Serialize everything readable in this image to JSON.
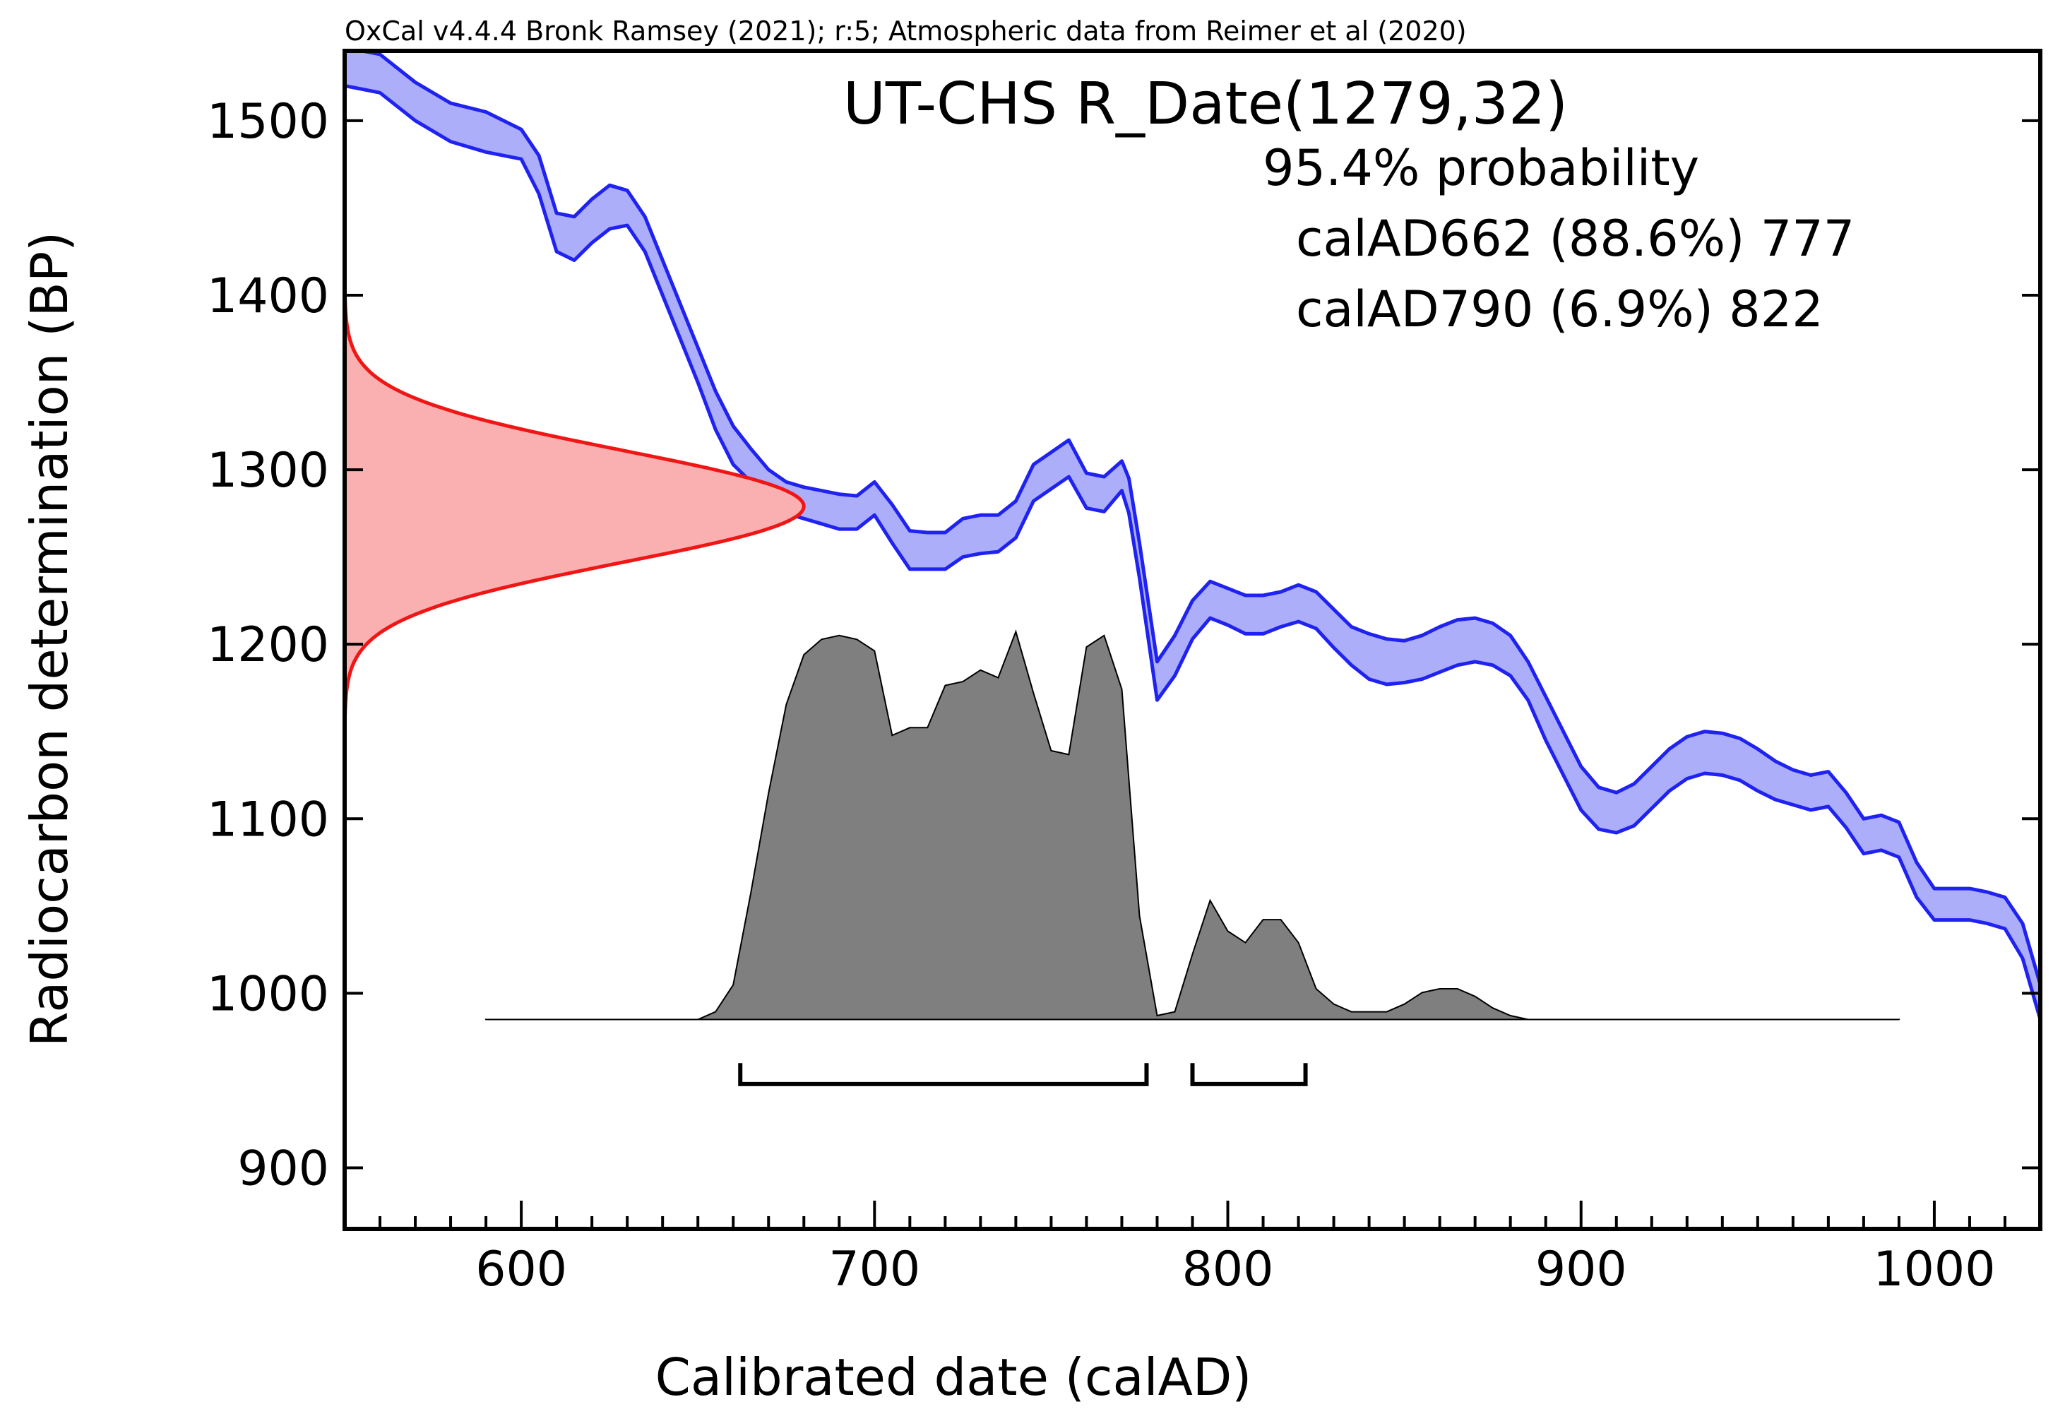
{
  "credit": "OxCal v4.4.4 Bronk Ramsey (2021); r:5; Atmospheric data from Reimer et al (2020)",
  "legend": {
    "sample": "UT-CHS R_Date(1279,32)",
    "probability_heading": "95.4% probability",
    "ranges": [
      "calAD662 (88.6%) 777",
      "calAD790 (6.9%) 822"
    ]
  },
  "colors": {
    "curve": "#1f22f0",
    "curve_fill": "#acaefa",
    "measurement": "#f01616",
    "measurement_fill": "#fab0b0",
    "posterior_fill": "#7f7f7f"
  },
  "chart_data": {
    "type": "area",
    "xlabel": "Calibrated date (calAD)",
    "ylabel": "Radiocarbon determination (BP)",
    "xlim": [
      550,
      1030
    ],
    "ylim": [
      865,
      1540
    ],
    "xticks": [
      600,
      700,
      800,
      900,
      1000
    ],
    "yticks": [
      900,
      1000,
      1100,
      1200,
      1300,
      1400,
      1500
    ],
    "grid": false,
    "calibration_curve": {
      "x": [
        550,
        560,
        570,
        580,
        590,
        600,
        605,
        610,
        615,
        620,
        625,
        630,
        635,
        640,
        645,
        650,
        655,
        660,
        665,
        670,
        675,
        680,
        685,
        690,
        695,
        700,
        705,
        710,
        715,
        720,
        725,
        730,
        735,
        740,
        745,
        750,
        755,
        760,
        765,
        770,
        772,
        775,
        780,
        785,
        790,
        795,
        800,
        805,
        810,
        815,
        820,
        825,
        830,
        835,
        840,
        845,
        850,
        855,
        860,
        865,
        870,
        875,
        880,
        885,
        890,
        895,
        900,
        905,
        910,
        915,
        920,
        925,
        930,
        935,
        940,
        945,
        950,
        955,
        960,
        965,
        970,
        975,
        980,
        985,
        990,
        995,
        1000,
        1005,
        1010,
        1015,
        1020,
        1025,
        1030
      ],
      "upper": [
        1542,
        1538,
        1522,
        1510,
        1505,
        1495,
        1480,
        1447,
        1445,
        1455,
        1463,
        1460,
        1445,
        1420,
        1395,
        1370,
        1345,
        1325,
        1312,
        1300,
        1293,
        1290,
        1288,
        1286,
        1285,
        1293,
        1280,
        1265,
        1264,
        1264,
        1272,
        1274,
        1274,
        1282,
        1303,
        1310,
        1317,
        1298,
        1296,
        1305,
        1295,
        1258,
        1190,
        1205,
        1225,
        1236,
        1232,
        1228,
        1228,
        1230,
        1234,
        1230,
        1220,
        1210,
        1206,
        1203,
        1202,
        1205,
        1210,
        1214,
        1215,
        1212,
        1205,
        1190,
        1170,
        1150,
        1130,
        1118,
        1115,
        1120,
        1130,
        1140,
        1147,
        1150,
        1149,
        1146,
        1140,
        1133,
        1128,
        1125,
        1127,
        1115,
        1100,
        1102,
        1098,
        1075,
        1060,
        1060,
        1060,
        1058,
        1055,
        1040,
        1005
      ],
      "lower": [
        1520,
        1516,
        1500,
        1488,
        1482,
        1478,
        1458,
        1425,
        1420,
        1430,
        1438,
        1440,
        1425,
        1400,
        1375,
        1350,
        1323,
        1303,
        1293,
        1283,
        1275,
        1272,
        1269,
        1266,
        1266,
        1274,
        1258,
        1243,
        1243,
        1243,
        1250,
        1252,
        1253,
        1261,
        1282,
        1289,
        1296,
        1278,
        1276,
        1288,
        1275,
        1238,
        1168,
        1182,
        1203,
        1215,
        1211,
        1206,
        1206,
        1210,
        1213,
        1209,
        1198,
        1188,
        1180,
        1177,
        1178,
        1180,
        1184,
        1188,
        1190,
        1188,
        1182,
        1168,
        1145,
        1125,
        1105,
        1094,
        1092,
        1096,
        1106,
        1116,
        1123,
        1126,
        1125,
        1122,
        1116,
        1111,
        1108,
        1105,
        1107,
        1095,
        1080,
        1082,
        1078,
        1055,
        1042,
        1042,
        1042,
        1040,
        1037,
        1020,
        985
      ]
    },
    "measurement": {
      "mean": 1279,
      "sigma": 32
    },
    "posterior": {
      "baseline": 985,
      "peak": 1205,
      "x": [
        590,
        650,
        655,
        660,
        665,
        670,
        675,
        680,
        685,
        690,
        695,
        700,
        705,
        710,
        715,
        720,
        725,
        730,
        735,
        740,
        745,
        750,
        755,
        760,
        765,
        770,
        775,
        780,
        785,
        790,
        795,
        800,
        805,
        810,
        815,
        820,
        825,
        830,
        835,
        840,
        845,
        850,
        855,
        860,
        865,
        870,
        875,
        880,
        885,
        990
      ],
      "y": [
        0.0,
        0.0,
        0.02,
        0.09,
        0.33,
        0.59,
        0.82,
        0.95,
        0.99,
        1.0,
        0.99,
        0.96,
        0.74,
        0.76,
        0.76,
        0.87,
        0.88,
        0.91,
        0.89,
        1.01,
        0.85,
        0.7,
        0.69,
        0.97,
        1.0,
        0.86,
        0.27,
        0.01,
        0.02,
        0.17,
        0.31,
        0.23,
        0.2,
        0.26,
        0.26,
        0.2,
        0.08,
        0.04,
        0.02,
        0.02,
        0.02,
        0.04,
        0.07,
        0.08,
        0.08,
        0.06,
        0.03,
        0.01,
        0.0,
        0.0
      ]
    },
    "ranges_95": [
      [
        662,
        777
      ],
      [
        790,
        822
      ]
    ]
  }
}
